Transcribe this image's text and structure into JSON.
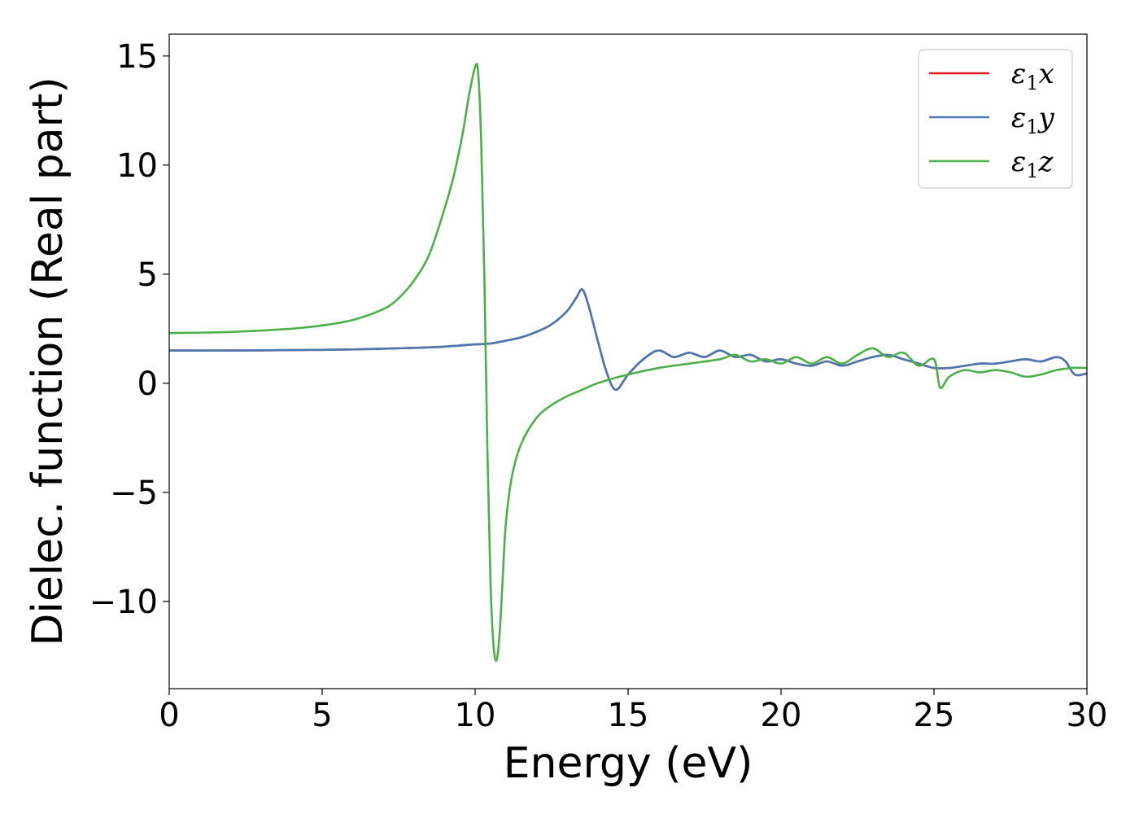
{
  "chart_data": {
    "type": "line",
    "title": "",
    "xlabel": "Energy (eV)",
    "ylabel": "Dielec. function (Real part)",
    "xlim": [
      0,
      30
    ],
    "ylim": [
      -14,
      16
    ],
    "xticks": [
      0,
      5,
      10,
      15,
      20,
      25,
      30
    ],
    "yticks": [
      -10,
      -5,
      0,
      5,
      10,
      15
    ],
    "xtick_labels": [
      "0",
      "5",
      "10",
      "15",
      "20",
      "25",
      "30"
    ],
    "ytick_labels": [
      "−10",
      "−5",
      "0",
      "5",
      "10",
      "15"
    ],
    "grid": false,
    "legend_position": "top-right",
    "series": [
      {
        "name": "ε1x",
        "legend_symbol": "ε",
        "legend_sub": "1",
        "legend_suffix": "x",
        "color": "#e41a1c",
        "x": [
          0,
          2,
          4,
          6,
          8,
          9,
          10,
          10.5,
          11,
          11.5,
          12,
          12.5,
          13,
          13.3,
          13.5,
          13.7,
          14,
          14.3,
          14.6,
          15,
          15.5,
          16,
          16.5,
          17,
          17.5,
          18,
          18.5,
          19,
          19.5,
          20,
          20.5,
          21,
          21.5,
          22,
          22.5,
          23,
          23.5,
          24,
          24.5,
          25,
          25.5,
          26,
          26.5,
          27,
          27.5,
          28,
          28.5,
          29,
          29.3,
          29.6,
          30
        ],
        "y": [
          1.5,
          1.5,
          1.52,
          1.55,
          1.62,
          1.68,
          1.78,
          1.82,
          1.95,
          2.1,
          2.35,
          2.7,
          3.3,
          3.9,
          4.3,
          3.6,
          2.0,
          0.5,
          -0.3,
          0.4,
          1.1,
          1.5,
          1.2,
          1.4,
          1.2,
          1.5,
          1.2,
          1.3,
          1.0,
          1.1,
          0.9,
          0.8,
          1.0,
          0.8,
          1.0,
          1.2,
          1.3,
          1.1,
          0.9,
          0.7,
          0.7,
          0.8,
          0.9,
          0.9,
          1.0,
          1.1,
          1.0,
          1.2,
          1.0,
          0.4,
          0.45
        ]
      },
      {
        "name": "ε1y",
        "legend_symbol": "ε",
        "legend_sub": "1",
        "legend_suffix": "y",
        "color": "#4a78b0",
        "x": [
          0,
          2,
          4,
          6,
          8,
          9,
          10,
          10.5,
          11,
          11.5,
          12,
          12.5,
          13,
          13.3,
          13.5,
          13.7,
          14,
          14.3,
          14.6,
          15,
          15.5,
          16,
          16.5,
          17,
          17.5,
          18,
          18.5,
          19,
          19.5,
          20,
          20.5,
          21,
          21.5,
          22,
          22.5,
          23,
          23.5,
          24,
          24.5,
          25,
          25.5,
          26,
          26.5,
          27,
          27.5,
          28,
          28.5,
          29,
          29.3,
          29.6,
          30
        ],
        "y": [
          1.5,
          1.5,
          1.52,
          1.55,
          1.62,
          1.68,
          1.78,
          1.82,
          1.95,
          2.1,
          2.35,
          2.7,
          3.3,
          3.9,
          4.3,
          3.6,
          2.0,
          0.5,
          -0.3,
          0.4,
          1.1,
          1.5,
          1.2,
          1.4,
          1.2,
          1.5,
          1.2,
          1.3,
          1.0,
          1.1,
          0.9,
          0.8,
          1.0,
          0.8,
          1.0,
          1.2,
          1.3,
          1.1,
          0.9,
          0.7,
          0.7,
          0.8,
          0.9,
          0.9,
          1.0,
          1.1,
          1.0,
          1.2,
          1.0,
          0.4,
          0.45
        ]
      },
      {
        "name": "ε1z",
        "legend_symbol": "ε",
        "legend_sub": "1",
        "legend_suffix": "z",
        "color": "#4daf4a",
        "x": [
          0,
          2,
          4,
          5,
          6,
          7,
          7.5,
          8,
          8.5,
          9,
          9.3,
          9.6,
          9.8,
          10.0,
          10.1,
          10.2,
          10.3,
          10.4,
          10.5,
          10.6,
          10.7,
          10.8,
          10.9,
          11.0,
          11.2,
          11.5,
          12,
          12.5,
          13,
          13.5,
          14,
          15,
          16,
          17,
          18,
          18.5,
          19,
          19.5,
          20,
          20.5,
          21,
          21.5,
          22,
          22.5,
          23,
          23.5,
          24,
          24.5,
          25,
          25.2,
          25.5,
          26,
          26.5,
          27,
          27.5,
          28,
          28.5,
          29,
          29.5,
          30
        ],
        "y": [
          2.3,
          2.35,
          2.5,
          2.65,
          2.9,
          3.4,
          3.9,
          4.7,
          5.9,
          8.0,
          9.5,
          11.5,
          13.2,
          14.5,
          14.2,
          11.0,
          5.0,
          -3.0,
          -9.0,
          -12.0,
          -12.7,
          -11.5,
          -9.0,
          -6.5,
          -4.3,
          -2.8,
          -1.6,
          -1.0,
          -0.6,
          -0.3,
          0.0,
          0.4,
          0.7,
          0.9,
          1.1,
          1.3,
          1.0,
          1.1,
          0.9,
          1.2,
          0.9,
          1.2,
          0.9,
          1.3,
          1.6,
          1.2,
          1.4,
          0.8,
          1.1,
          -0.2,
          0.3,
          0.6,
          0.5,
          0.6,
          0.5,
          0.3,
          0.4,
          0.6,
          0.7,
          0.7
        ]
      }
    ]
  }
}
